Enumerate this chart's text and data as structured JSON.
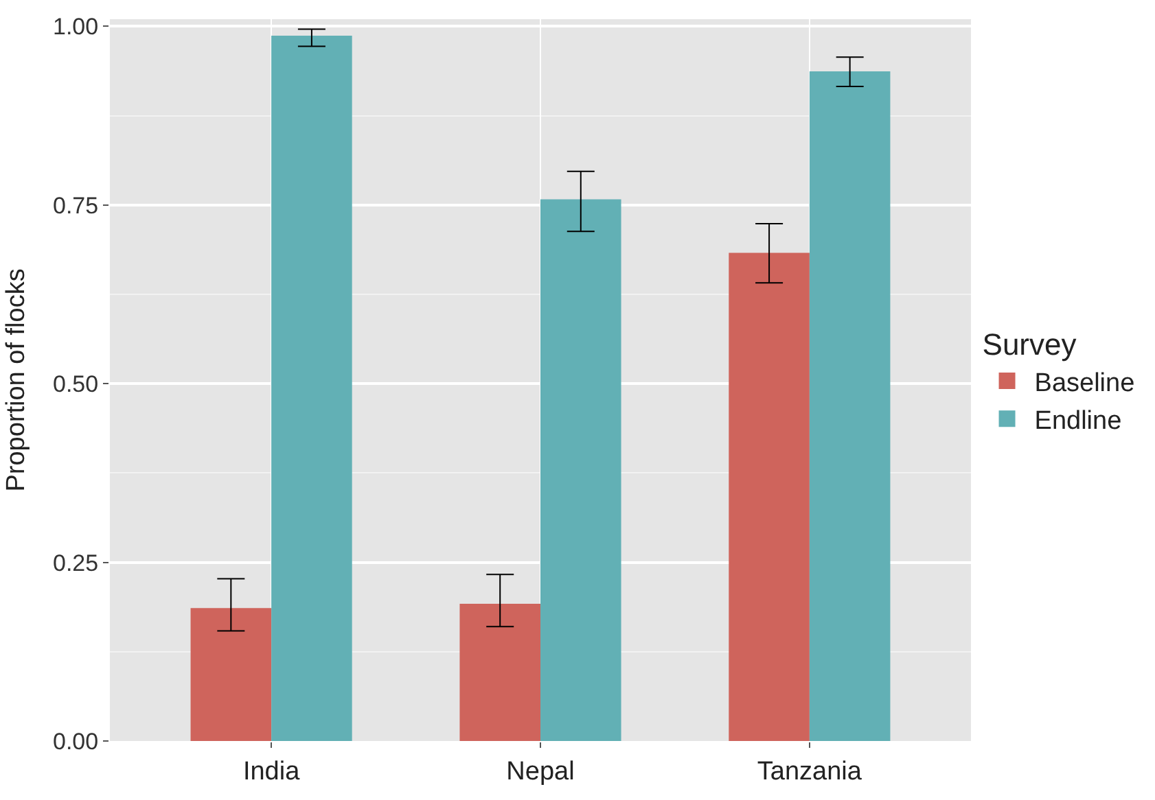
{
  "chart_data": {
    "type": "bar",
    "ylabel": "Proportion of flocks",
    "legend_title": "Survey",
    "categories": [
      "India",
      "Nepal",
      "Tanzania"
    ],
    "series": [
      {
        "name": "Baseline",
        "color": "#cf645c",
        "values": [
          0.186,
          0.192,
          0.683
        ],
        "errors": [
          [
            0.154,
            0.227
          ],
          [
            0.16,
            0.233
          ],
          [
            0.641,
            0.724
          ]
        ]
      },
      {
        "name": "Endline",
        "color": "#62b0b5",
        "values": [
          0.987,
          0.758,
          0.937
        ],
        "errors": [
          [
            0.972,
            0.996
          ],
          [
            0.713,
            0.797
          ],
          [
            0.916,
            0.957
          ]
        ]
      }
    ],
    "ylim": [
      0,
      1.01
    ],
    "yticks": [
      {
        "value": 0,
        "label": "0.00"
      },
      {
        "value": 0.25,
        "label": "0.25"
      },
      {
        "value": 0.5,
        "label": "0.50"
      },
      {
        "value": 0.75,
        "label": "0.75"
      },
      {
        "value": 1,
        "label": "1.00"
      }
    ],
    "grid": true,
    "legend": "right"
  }
}
